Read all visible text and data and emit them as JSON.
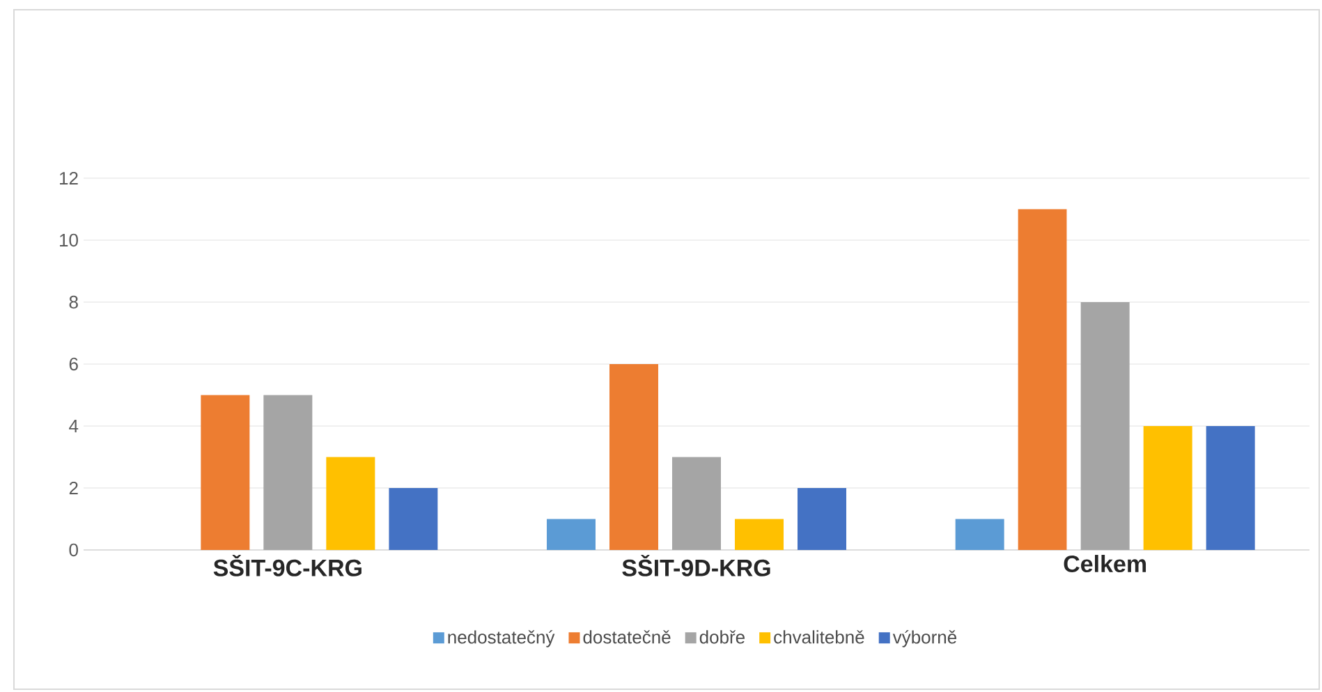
{
  "chart_data": {
    "type": "bar",
    "categories": [
      "SŠIT-9C-KRG",
      "SŠIT-9D-KRG",
      "Celkem"
    ],
    "series": [
      {
        "name": "nedostatečný",
        "color": "#5b9bd5",
        "values": [
          0,
          1,
          1
        ]
      },
      {
        "name": "dostatečně",
        "color": "#ed7d31",
        "values": [
          5,
          6,
          11
        ]
      },
      {
        "name": "dobře",
        "color": "#a5a5a5",
        "values": [
          5,
          3,
          8
        ]
      },
      {
        "name": "chvalitebně",
        "color": "#ffc000",
        "values": [
          3,
          1,
          4
        ]
      },
      {
        "name": "výborně",
        "color": "#4472c4",
        "values": [
          2,
          2,
          4
        ]
      }
    ],
    "ylim": [
      0,
      12
    ],
    "yticks": [
      0,
      2,
      4,
      6,
      8,
      10,
      12
    ],
    "grid": "y",
    "legend": "bottom"
  }
}
